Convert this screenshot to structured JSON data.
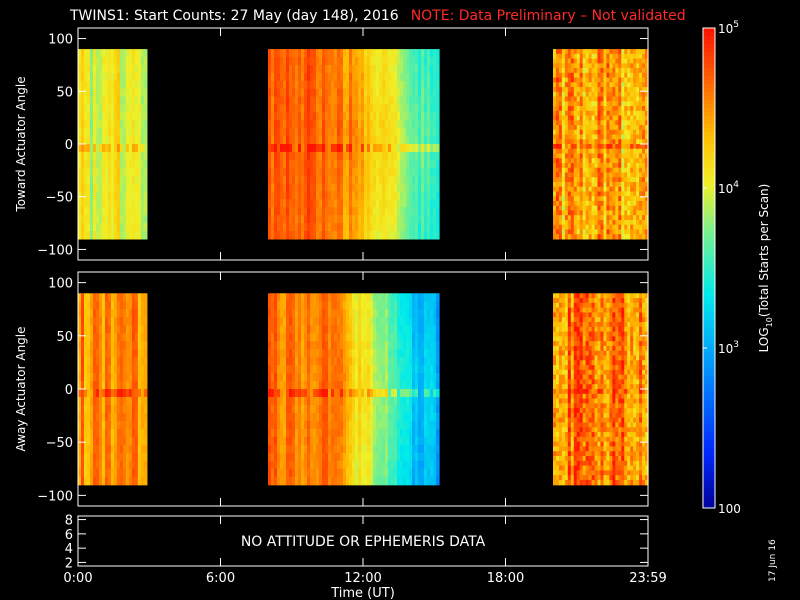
{
  "header": {
    "title": "TWINS1: Start Counts: 27 May (day 148), 2016",
    "note": "NOTE: Data Preliminary – Not validated"
  },
  "chart_data": [
    {
      "type": "heatmap",
      "ylabel": "Toward Actuator Angle",
      "ylim": [
        -110,
        110
      ],
      "yticks": [
        "100",
        "50",
        "0",
        "−50",
        "−100"
      ],
      "data_y_range": [
        -90,
        90
      ],
      "data_intervals_hours": [
        [
          0.0,
          2.9
        ],
        [
          8.0,
          15.2
        ],
        [
          20.0,
          24.0
        ]
      ],
      "dominant_log_level": {
        "first": 4.0,
        "middle_start": 4.7,
        "middle_end": 3.5,
        "last": 4.4
      }
    },
    {
      "type": "heatmap",
      "ylabel": "Away Actuator Angle",
      "ylim": [
        -110,
        110
      ],
      "yticks": [
        "100",
        "50",
        "0",
        "−50",
        "−100"
      ],
      "data_y_range": [
        -90,
        90
      ],
      "data_intervals_hours": [
        [
          0.0,
          2.9
        ],
        [
          8.0,
          15.2
        ],
        [
          20.0,
          24.0
        ]
      ],
      "dominant_log_level": {
        "first": 4.5,
        "middle_start": 4.6,
        "middle_end": 3.0,
        "last": 4.6
      }
    },
    {
      "type": "line",
      "ylim": [
        1.5,
        8.5
      ],
      "yticks": [
        "8",
        "6",
        "4",
        "2"
      ],
      "message": "NO ATTITUDE OR EPHEMERIS DATA"
    }
  ],
  "x_axis": {
    "range_hours": [
      0,
      24
    ],
    "ticks": [
      "0:00",
      "6:00",
      "12:00",
      "18:00",
      "23:59"
    ],
    "label": "Time (UT)"
  },
  "colorbar": {
    "label_main": "LOG",
    "label_sub": "10",
    "label_rest": "(Total Starts per Scan)",
    "log_range": [
      2,
      5
    ],
    "ticks": [
      {
        "log": 5,
        "base": "10",
        "exp": "5"
      },
      {
        "log": 4,
        "base": "10",
        "exp": "4"
      },
      {
        "log": 3,
        "base": "10",
        "exp": "3"
      },
      {
        "log": 2,
        "base": "100",
        "exp": ""
      }
    ]
  },
  "date_stamp": "17 Jun 16"
}
